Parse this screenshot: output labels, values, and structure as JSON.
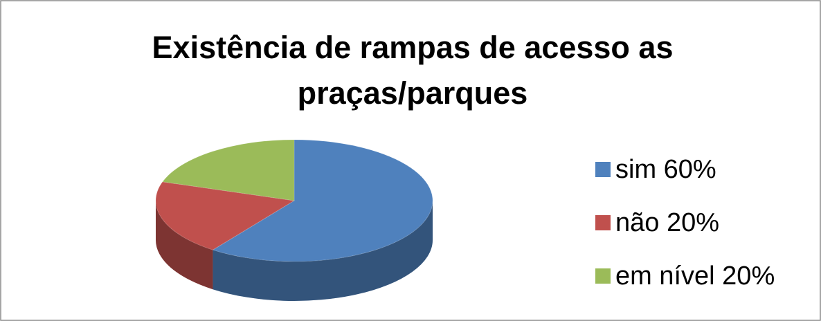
{
  "chart_data": {
    "type": "pie",
    "title": [
      "Existência de rampas de acesso as",
      "praças/parques"
    ],
    "categories": [
      "sim 60%",
      "não 20%",
      "em nível 20%"
    ],
    "values": [
      60,
      20,
      20
    ],
    "colors": [
      "#4f81bd",
      "#c0504d",
      "#9bbb59"
    ],
    "legend": "right"
  }
}
